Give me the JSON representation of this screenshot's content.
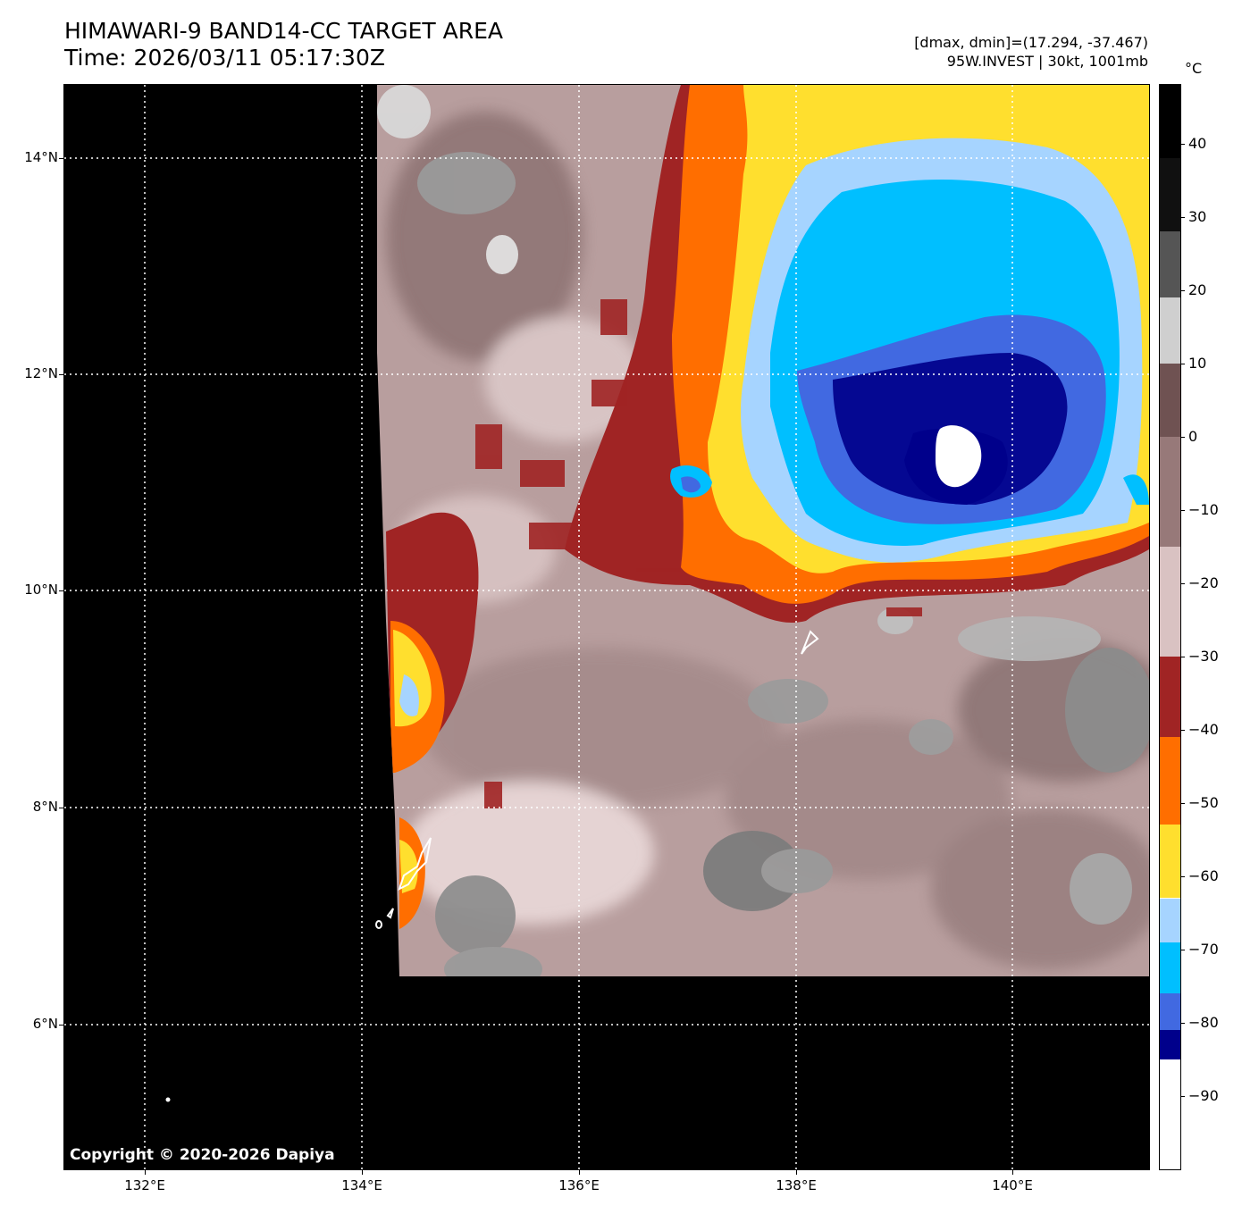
{
  "header": {
    "title_line1": "HIMAWARI-9 BAND14-CC TARGET AREA",
    "title_line2": "Time: 2026/03/11 05:17:30Z",
    "info_line1": "[dmax, dmin]=(17.294, -37.467)",
    "info_line2": "95W.INVEST | 30kt, 1001mb"
  },
  "map": {
    "copyright": "Copyright © 2020-2026 Dapiya",
    "lat_labels": [
      "14°N",
      "12°N",
      "10°N",
      "8°N",
      "6°N"
    ],
    "lon_labels": [
      "132°E",
      "134°E",
      "136°E",
      "138°E",
      "140°E"
    ]
  },
  "colorbar": {
    "unit": "°C",
    "labels": [
      "40",
      "30",
      "20",
      "10",
      "0",
      "−10",
      "−20",
      "−30",
      "−40",
      "−50",
      "−60",
      "−70",
      "−80",
      "−90"
    ],
    "bands": [
      {
        "from": 48,
        "to": 38,
        "color": "#000000"
      },
      {
        "from": 38,
        "to": 28,
        "color": "#101010"
      },
      {
        "from": 28,
        "to": 19,
        "color": "#555555"
      },
      {
        "from": 19,
        "to": 10,
        "color": "#cfcfcf"
      },
      {
        "from": 10,
        "to": 0,
        "color": "#6f5252"
      },
      {
        "from": 0,
        "to": -15,
        "color": "#977979"
      },
      {
        "from": -15,
        "to": -30,
        "color": "#d9c2c2"
      },
      {
        "from": -30,
        "to": -41,
        "color": "#a02424"
      },
      {
        "from": -41,
        "to": -53,
        "color": "#ff6e00"
      },
      {
        "from": -53,
        "to": -63,
        "color": "#ffdf2e"
      },
      {
        "from": -63,
        "to": -69,
        "color": "#a6d4ff"
      },
      {
        "from": -69,
        "to": -76,
        "color": "#00bfff"
      },
      {
        "from": -76,
        "to": -81,
        "color": "#4169e1"
      },
      {
        "from": -81,
        "to": -85,
        "color": "#00008b"
      },
      {
        "from": -85,
        "to": -100,
        "color": "#ffffff"
      }
    ]
  },
  "colors": {
    "cold_top": "#ffffff",
    "very_cold": "#00008b",
    "deep": "#4169e1",
    "cold": "#00bfff",
    "light_blue": "#a6d4ff",
    "yellow": "#ffdf2e",
    "orange": "#ff6e00",
    "dark_red": "#a02424",
    "pink": "#d9c2c2",
    "mauve": "#977979",
    "gray": "#8a8a8a"
  }
}
